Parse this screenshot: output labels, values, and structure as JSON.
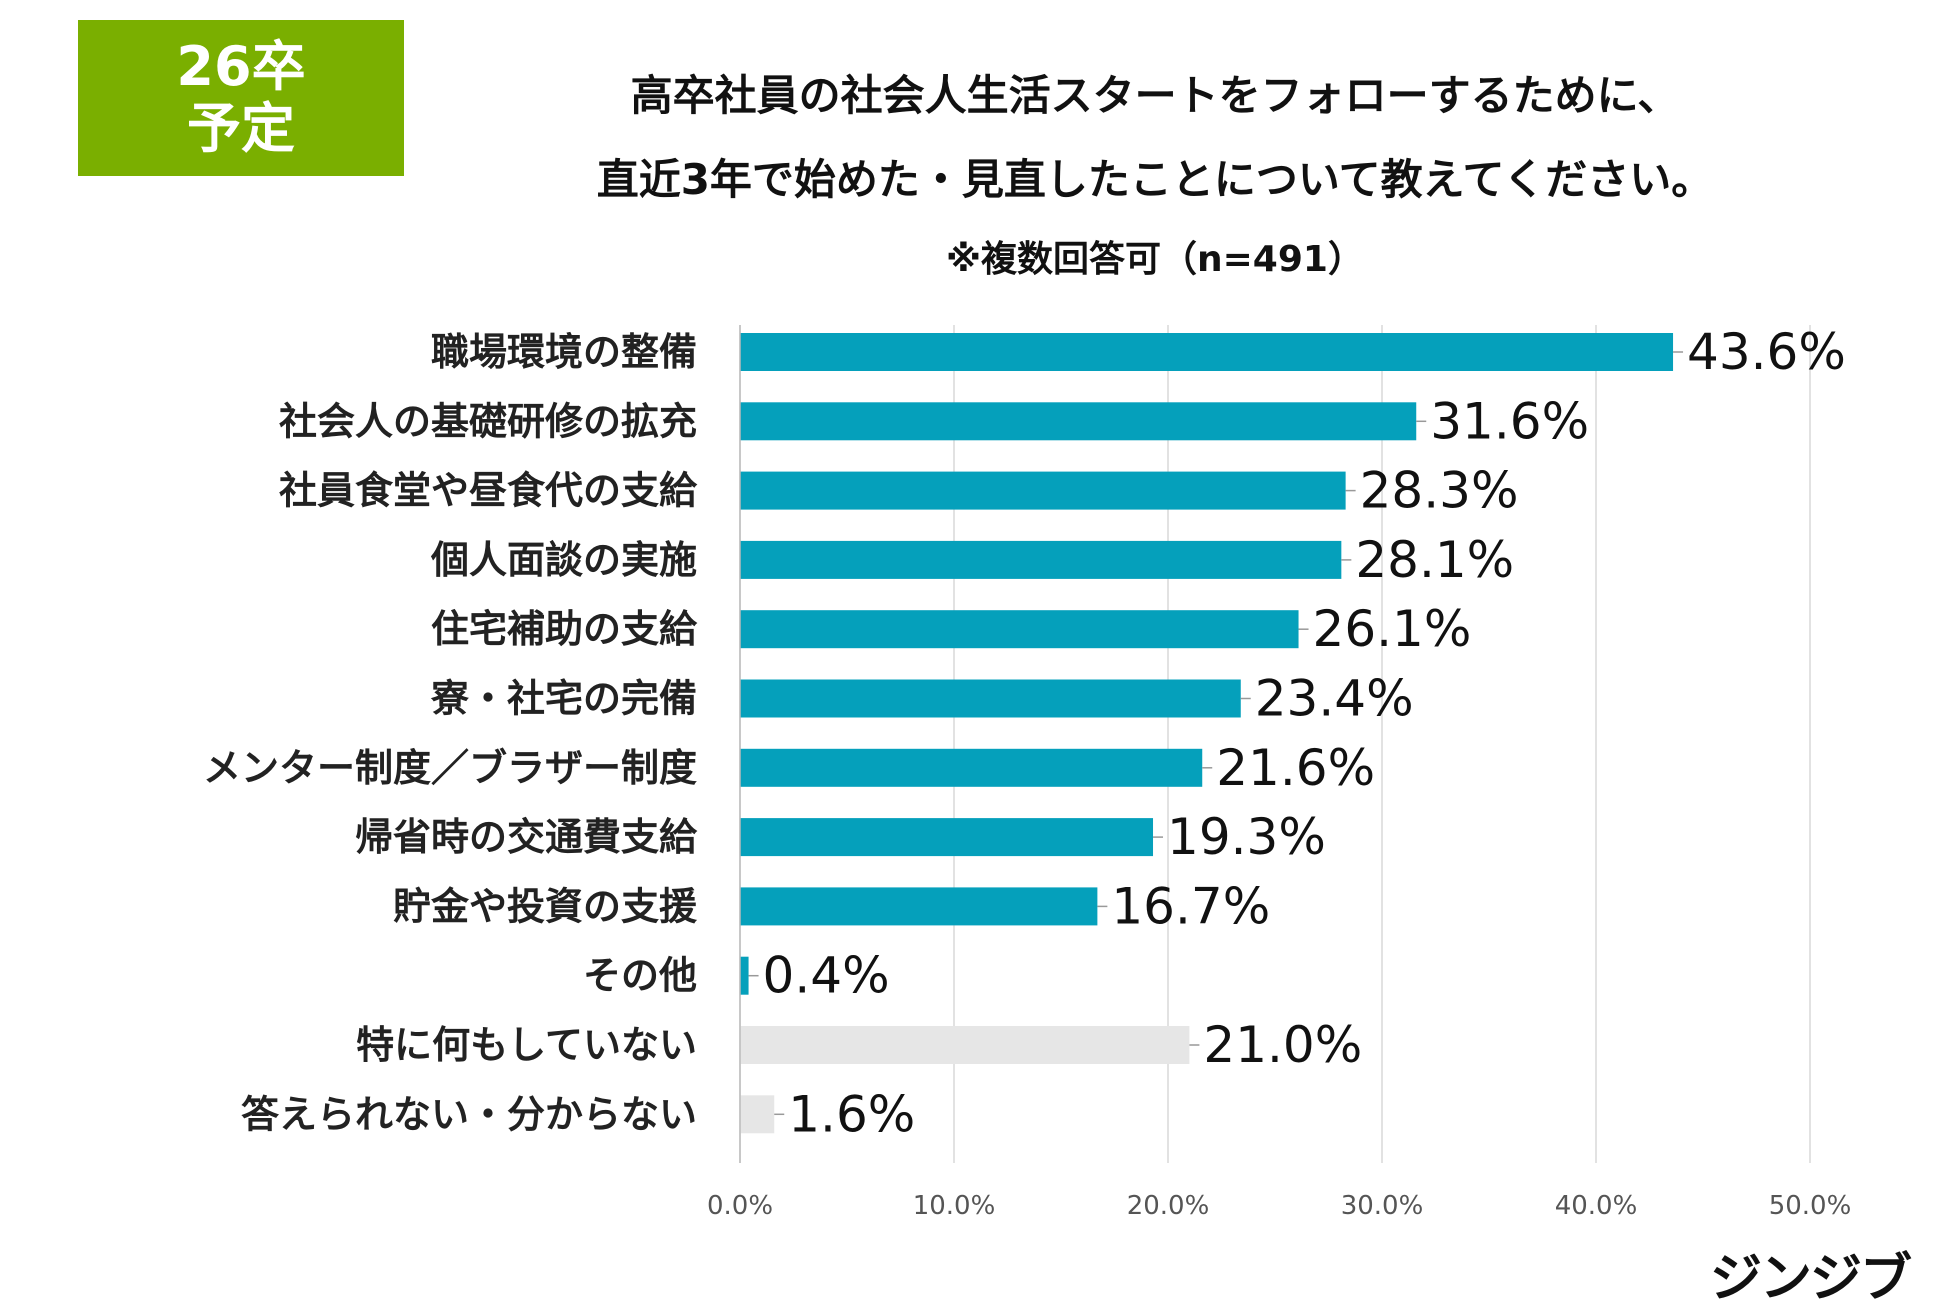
{
  "badge": {
    "line1": "26卒",
    "line2": "予定"
  },
  "header": {
    "title_line1": "高卒社員の社会人生活スタートをフォローするために、",
    "title_line2": "直近3年で始めた・見直したことについて教えてください。",
    "note": "※複数回答可（n=491）"
  },
  "logo": "ジンジブ",
  "colors": {
    "accent": "#05a0bb",
    "muted": "#e6e6e6",
    "badge": "#7aaf00",
    "grid": "#d9d9d9"
  },
  "chart_data": {
    "type": "bar",
    "orientation": "horizontal",
    "title": "高卒社員の社会人生活スタートをフォローするために、直近3年で始めた・見直したことについて教えてください。",
    "subtitle": "※複数回答可（n=491）",
    "xlabel": "",
    "ylabel": "",
    "xlim": [
      0,
      50
    ],
    "grid": true,
    "ticks": [
      "0.0%",
      "10.0%",
      "20.0%",
      "30.0%",
      "40.0%",
      "50.0%"
    ],
    "tick_values": [
      0,
      10,
      20,
      30,
      40,
      50
    ],
    "categories": [
      "職場環境の整備",
      "社会人の基礎研修の拡充",
      "社員食堂や昼食代の支給",
      "個人面談の実施",
      "住宅補助の支給",
      "寮・社宅の完備",
      "メンター制度／ブラザー制度",
      "帰省時の交通費支給",
      "貯金や投資の支援",
      "その他",
      "特に何もしていない",
      "答えられない・分からない"
    ],
    "values": [
      43.6,
      31.6,
      28.3,
      28.1,
      26.1,
      23.4,
      21.6,
      19.3,
      16.7,
      0.4,
      21.0,
      1.6
    ],
    "labels": [
      "43.6%",
      "31.6%",
      "28.3%",
      "28.1%",
      "26.1%",
      "23.4%",
      "21.6%",
      "19.3%",
      "16.7%",
      "0.4%",
      "21.0%",
      "1.6%"
    ],
    "bar_colors": [
      "#05a0bb",
      "#05a0bb",
      "#05a0bb",
      "#05a0bb",
      "#05a0bb",
      "#05a0bb",
      "#05a0bb",
      "#05a0bb",
      "#05a0bb",
      "#05a0bb",
      "#e6e6e6",
      "#e6e6e6"
    ]
  }
}
